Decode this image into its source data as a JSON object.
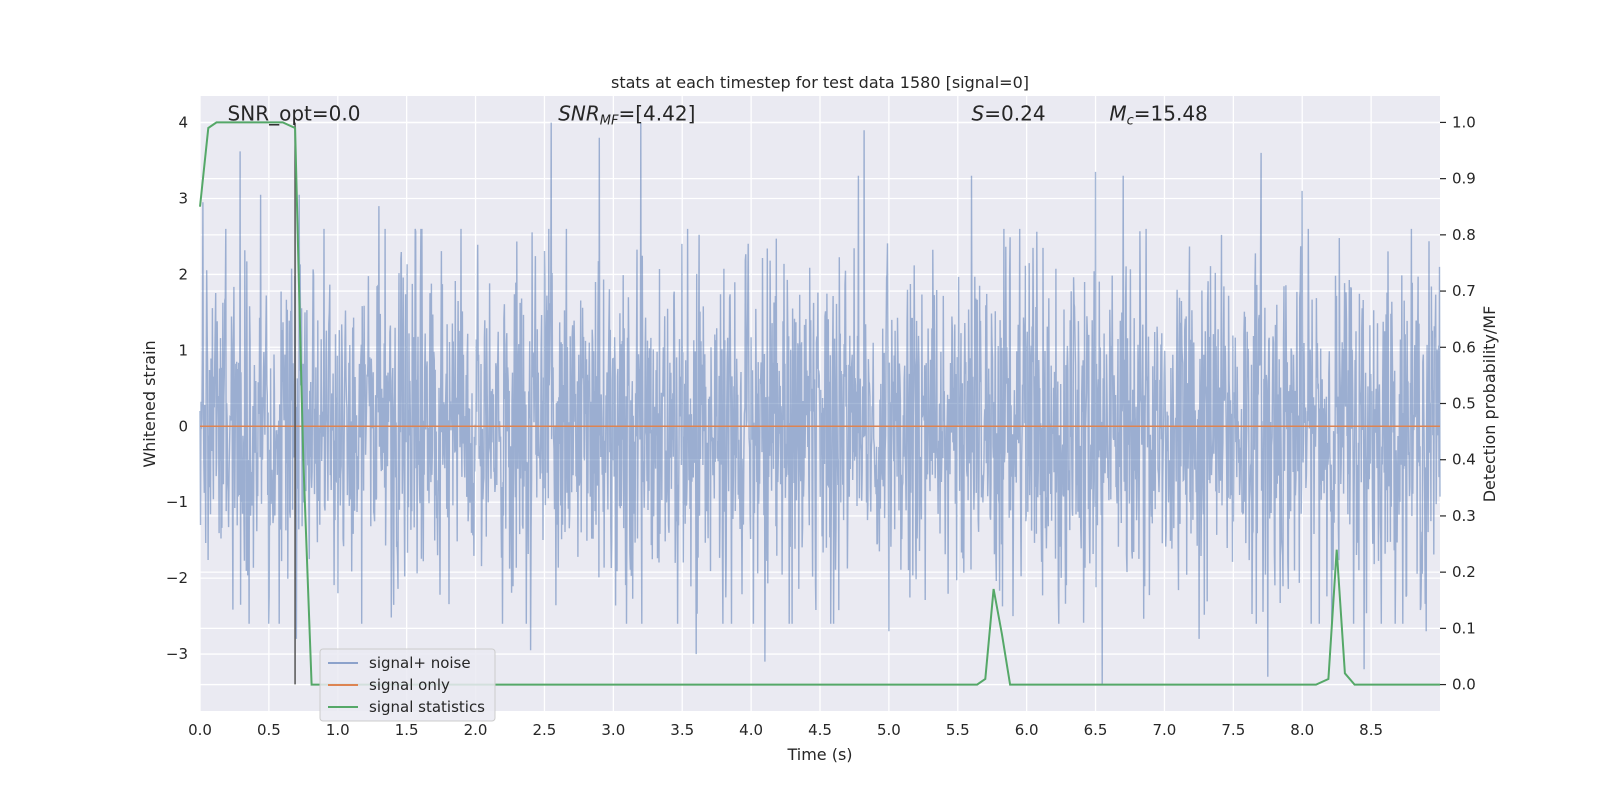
{
  "chart_data": {
    "type": "line",
    "title": "stats at each timestep for test data 1580 [signal=0]",
    "xlabel": "Time (s)",
    "ylabel": "Whitened strain",
    "y2label": "Detection probability/MF",
    "xlim": [
      0,
      9.0
    ],
    "ylim": [
      -3.75,
      4.35
    ],
    "y2lim": [
      -0.047,
      1.047
    ],
    "x_ticks": [
      0.0,
      0.5,
      1.0,
      1.5,
      2.0,
      2.5,
      3.0,
      3.5,
      4.0,
      4.5,
      5.0,
      5.5,
      6.0,
      6.5,
      7.0,
      7.5,
      8.0,
      8.5
    ],
    "y_ticks": [
      -3,
      -2,
      -1,
      0,
      1,
      2,
      3,
      4
    ],
    "y2_ticks": [
      0.0,
      0.1,
      0.2,
      0.3,
      0.4,
      0.5,
      0.6,
      0.7,
      0.8,
      0.9,
      1.0
    ],
    "grid": true,
    "legend_position": "lower-left",
    "annotations": [
      {
        "text": "SNR_opt=0.0",
        "x": 0.2,
        "y": 4.03
      },
      {
        "text": "SNR_MF=[4.42]",
        "x": 2.6,
        "y": 4.03
      },
      {
        "text": "S=0.24",
        "x": 5.6,
        "y": 4.03
      },
      {
        "text": "M_c=15.48",
        "x": 6.6,
        "y": 4.03
      }
    ],
    "vline": {
      "x": 0.69,
      "y_from": -3.4,
      "y_to": 4.0
    },
    "series": [
      {
        "name": "signal+ noise",
        "color": "#4c72b0",
        "kind": "noise",
        "axis": "left",
        "typical_amplitude": 1.3,
        "peaks": [
          [
            0.02,
            2.95
          ],
          [
            0.29,
            3.62
          ],
          [
            0.44,
            3.05
          ],
          [
            0.72,
            3.05
          ],
          [
            1.3,
            2.9
          ],
          [
            2.4,
            3.3
          ],
          [
            2.55,
            4.0
          ],
          [
            2.9,
            3.8
          ],
          [
            3.2,
            4.0
          ],
          [
            4.78,
            3.3
          ],
          [
            4.82,
            3.9
          ],
          [
            5.6,
            3.3
          ],
          [
            6.5,
            3.35
          ],
          [
            6.7,
            3.3
          ],
          [
            7.7,
            3.6
          ],
          [
            8.0,
            3.1
          ],
          [
            8.9,
            2.8
          ]
        ],
        "troughs": [
          [
            0.5,
            -2.6
          ],
          [
            0.7,
            -2.8
          ],
          [
            1.0,
            -2.2
          ],
          [
            2.4,
            -2.95
          ],
          [
            3.6,
            -3.0
          ],
          [
            4.1,
            -3.1
          ],
          [
            4.6,
            -2.6
          ],
          [
            5.0,
            -2.7
          ],
          [
            5.9,
            -2.5
          ],
          [
            6.55,
            -3.4
          ],
          [
            7.25,
            -2.8
          ],
          [
            7.75,
            -3.3
          ],
          [
            8.45,
            -3.2
          ],
          [
            8.9,
            -2.7
          ]
        ]
      },
      {
        "name": "signal only",
        "color": "#dd8452",
        "kind": "flat",
        "axis": "left",
        "x": [
          0.0,
          9.0
        ],
        "y": [
          0.0,
          0.0
        ]
      },
      {
        "name": "signal statistics",
        "color": "#55a868",
        "kind": "line",
        "axis": "right",
        "x": [
          0.0,
          0.06,
          0.12,
          0.6,
          0.69,
          0.75,
          0.81,
          4.5,
          5.64,
          5.7,
          5.76,
          5.82,
          5.88,
          8.1,
          8.19,
          8.25,
          8.31,
          8.38,
          9.0
        ],
        "y": [
          0.85,
          0.99,
          1.0,
          1.0,
          0.99,
          0.4,
          0.0,
          0.0,
          0.0,
          0.01,
          0.17,
          0.09,
          0.0,
          0.0,
          0.01,
          0.24,
          0.02,
          0.0,
          0.0
        ]
      }
    ]
  }
}
